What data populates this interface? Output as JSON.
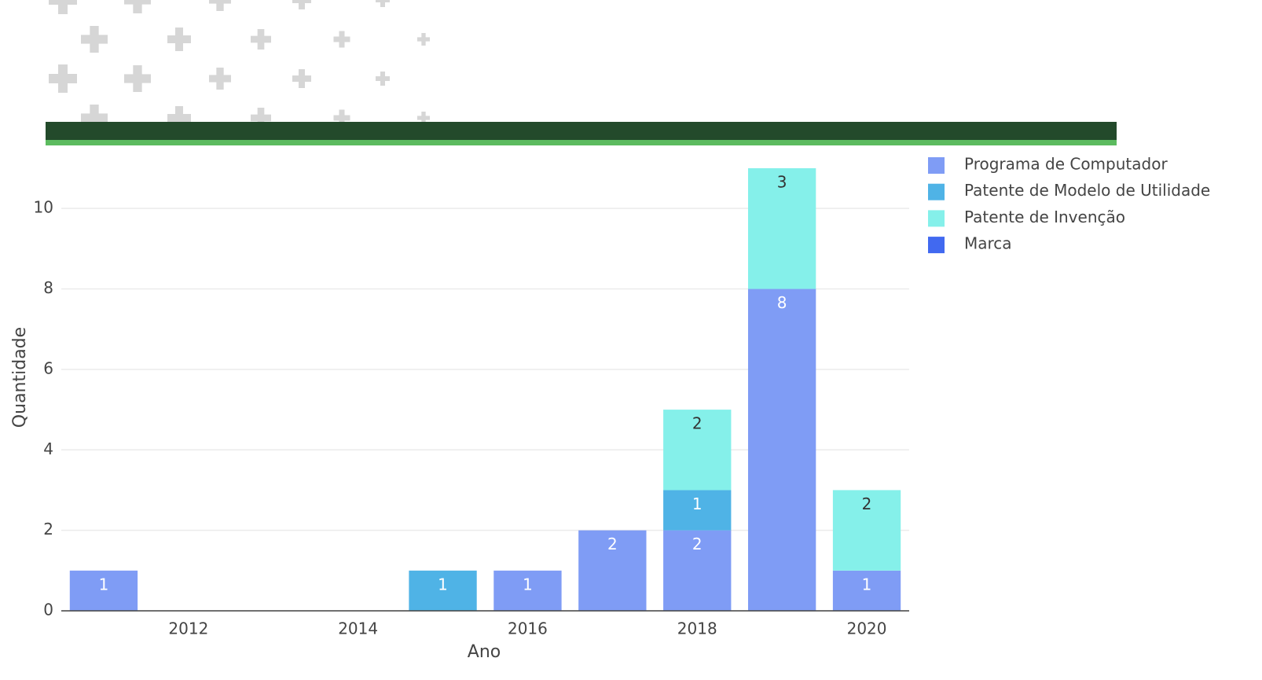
{
  "chart_data": {
    "type": "bar",
    "stacked": true,
    "x": [
      2011,
      2015,
      2016,
      2017,
      2018,
      2019,
      2020
    ],
    "series": [
      {
        "name": "Programa de Computador",
        "color": "#7f9cf5",
        "label_color": "#ffffff",
        "values": [
          1,
          null,
          1,
          2,
          2,
          8,
          1
        ]
      },
      {
        "name": "Patente de Modelo de Utilidade",
        "color": "#4fb3e6",
        "label_color": "#ffffff",
        "values": [
          null,
          1,
          null,
          null,
          1,
          null,
          null
        ]
      },
      {
        "name": "Patente de Invenção",
        "color": "#85f0ea",
        "label_color": "#333333",
        "values": [
          null,
          null,
          null,
          null,
          2,
          3,
          2
        ]
      },
      {
        "name": "Marca",
        "color": "#4169f0",
        "label_color": "#ffffff",
        "values": [
          null,
          null,
          null,
          null,
          null,
          null,
          null
        ]
      }
    ],
    "xlabel": "Ano",
    "ylabel": "Quantidade",
    "xlim": [
      2010.5,
      2020.5
    ],
    "xticks": [
      2012,
      2014,
      2016,
      2018,
      2020
    ],
    "ylim": [
      0,
      11
    ],
    "yticks": [
      0,
      2,
      4,
      6,
      8,
      10
    ],
    "grid": true,
    "legend": "top-right"
  }
}
